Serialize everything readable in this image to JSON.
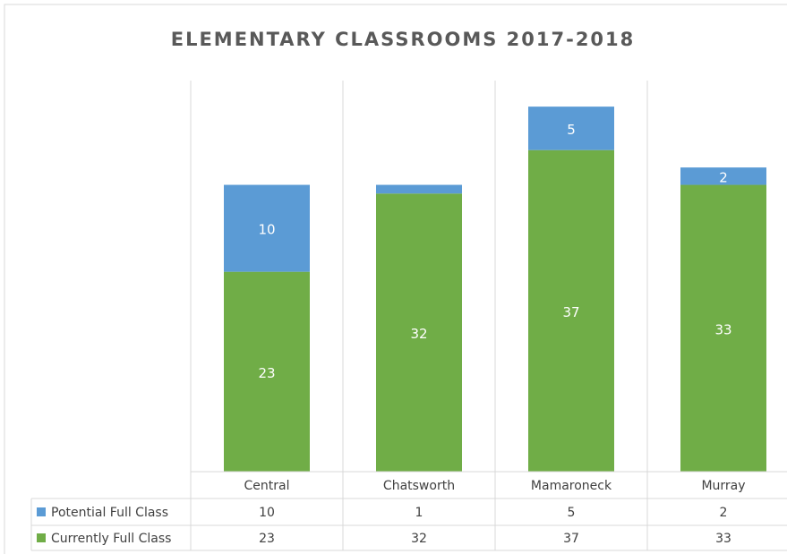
{
  "chart_data": {
    "type": "stacked_bar",
    "title": "ELEMENTARY CLASSROOMS 2017-2018",
    "categories": [
      "Central",
      "Chatsworth",
      "Mamaroneck",
      "Murray"
    ],
    "series": [
      {
        "name": "Currently Full Class",
        "color": "#70ad47",
        "values": [
          23,
          32,
          37,
          33
        ]
      },
      {
        "name": "Potential Full Class",
        "color": "#5b9bd5",
        "values": [
          10,
          1,
          5,
          2
        ]
      }
    ],
    "ylim": [
      0,
      45
    ],
    "data_table": true
  }
}
